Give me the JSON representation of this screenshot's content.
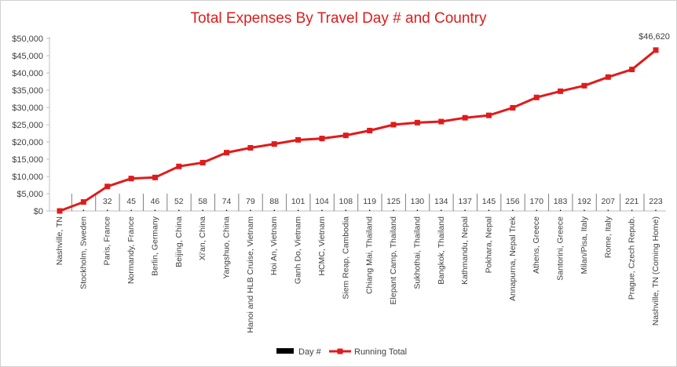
{
  "chart_data": {
    "type": "line",
    "title": "Total Expenses By Travel Day # and Country",
    "xlabel": "",
    "ylabel": "",
    "ylim": [
      0,
      50000
    ],
    "y_tick_labels": [
      "$0",
      "$5,000",
      "$10,000",
      "$15,000",
      "$20,000",
      "$25,000",
      "$30,000",
      "$35,000",
      "$40,000",
      "$45,000",
      "$50,000"
    ],
    "grid": false,
    "legend_position": "bottom",
    "categories": [
      "Nashville, TN",
      "Stockholm, Sweden",
      "Paris, France",
      "Normandy, France",
      "Berlin, Germany",
      "Beijing, China",
      "Xi'an, China",
      "Yangshuo, China",
      "Hanoi and HLB Cruise, Vietnam",
      "Hoi An, Vietnam",
      "Ganh Do, Vietnam",
      "HCMC, Vietnam",
      "Siem Reap, Cambodia",
      "Chiang Mai, Thailand",
      "Elepant Camp, Thailand",
      "Sukhothai, Thailand",
      "Bangkok, Thailand",
      "Kathmandu, Nepal",
      "Pokhara, Nepal",
      "Annapurna, Nepal Trek",
      "Athens, Greece",
      "Santorini, Greece",
      "Milan/Pisa, Italy",
      "Rome, Italy",
      "Prague, Czech Repub.",
      "Nashville, TN (Coming Home)"
    ],
    "series": [
      {
        "name": "Day #",
        "color": "#000000",
        "values": [
          0,
          3,
          32,
          45,
          46,
          52,
          58,
          74,
          79,
          88,
          101,
          104,
          108,
          119,
          125,
          130,
          134,
          137,
          145,
          156,
          170,
          183,
          192,
          207,
          221,
          223
        ],
        "labels": [
          "",
          "",
          "32",
          "45",
          "46",
          "52",
          "58",
          "74",
          "79",
          "88",
          "101",
          "104",
          "108",
          "119",
          "125",
          "130",
          "134",
          "137",
          "145",
          "156",
          "170",
          "183",
          "192",
          "207",
          "221",
          "223"
        ]
      },
      {
        "name": "Running Total",
        "color": "#e01b1b",
        "values": [
          0,
          2600,
          7100,
          9400,
          9700,
          12900,
          14000,
          16900,
          18300,
          19400,
          20600,
          21000,
          21900,
          23300,
          25000,
          25600,
          25900,
          27000,
          27700,
          29900,
          32900,
          34700,
          36300,
          38800,
          41000,
          46620
        ]
      }
    ],
    "annotations": [
      {
        "text": "$46,620",
        "series": "Running Total",
        "index": 25
      }
    ]
  }
}
